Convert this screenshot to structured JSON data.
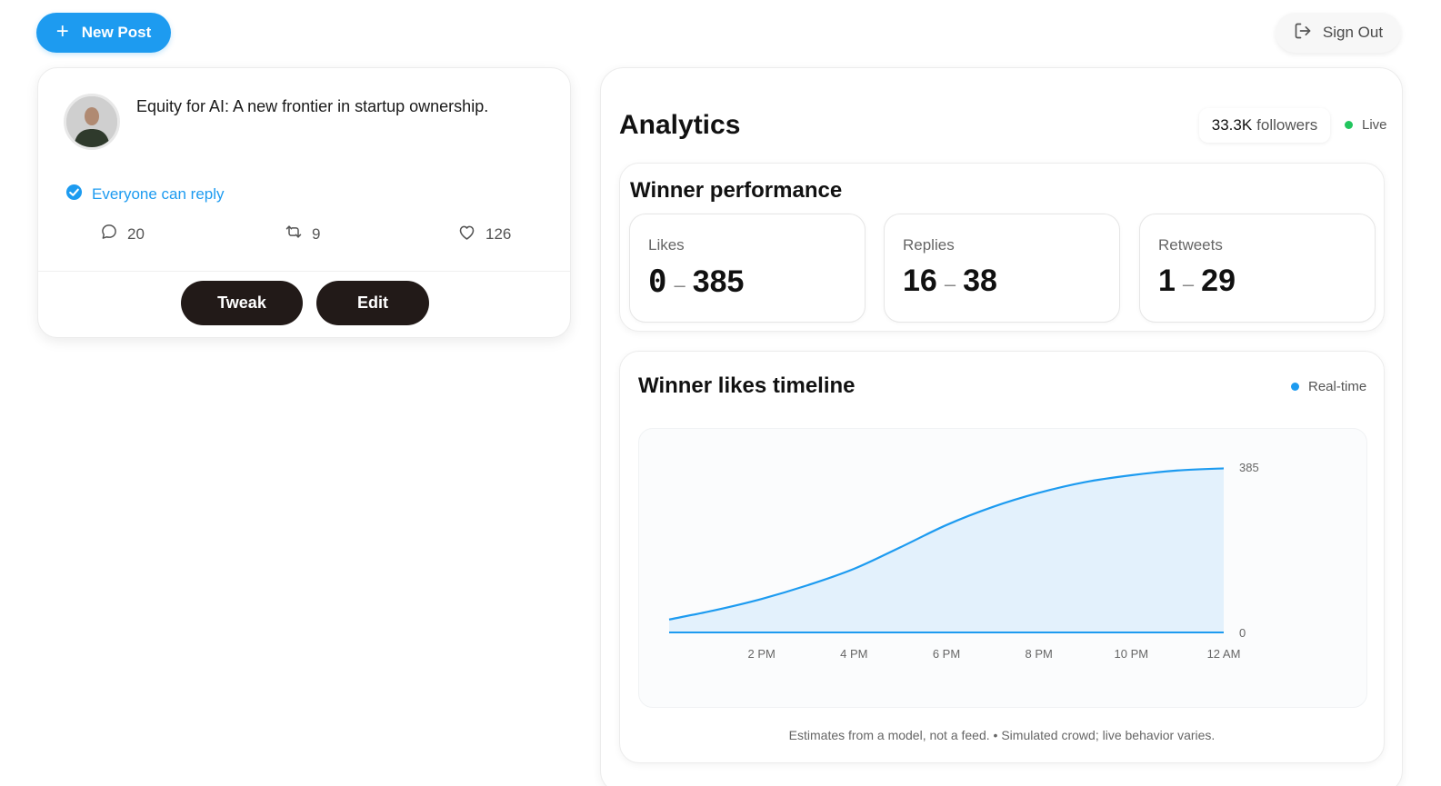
{
  "header": {
    "new_post_label": "New Post",
    "sign_out_label": "Sign Out"
  },
  "post": {
    "text": "Equity for AI: A new frontier in startup ownership.",
    "reply_setting": "Everyone can reply",
    "stats": {
      "replies": "20",
      "retweets": "9",
      "likes": "126"
    },
    "actions": {
      "tweak_label": "Tweak",
      "edit_label": "Edit"
    }
  },
  "analytics": {
    "title": "Analytics",
    "followers_count": "33.3K",
    "followers_label": "followers",
    "live_label": "Live",
    "live_color": "#22c55e",
    "performance": {
      "title": "Winner performance",
      "metrics": [
        {
          "label": "Likes",
          "low": "0",
          "high": "385"
        },
        {
          "label": "Replies",
          "low": "16",
          "high": "38"
        },
        {
          "label": "Retweets",
          "low": "1",
          "high": "29"
        }
      ]
    },
    "timeline": {
      "title": "Winner likes timeline",
      "realtime_label": "Real-time",
      "realtime_color": "#1d9bf0",
      "footnote": "Estimates from a model, not a feed. • Simulated crowd; live behavior varies."
    }
  },
  "chart_data": {
    "type": "area",
    "title": "Winner likes timeline",
    "x": [
      0,
      1,
      2,
      3,
      4,
      5,
      6,
      7,
      8,
      9,
      10,
      11,
      12
    ],
    "x_tick_positions": [
      2,
      4,
      6,
      8,
      10,
      12
    ],
    "x_tick_labels": [
      "2 PM",
      "4 PM",
      "6 PM",
      "8 PM",
      "10 PM",
      "12 AM"
    ],
    "y_tick_labels": [
      "385",
      "0"
    ],
    "series": [
      {
        "name": "Likes",
        "values": [
          30,
          52,
          78,
          110,
          148,
          198,
          250,
          292,
          325,
          350,
          366,
          377,
          382
        ],
        "color": "#1d9bf0"
      }
    ],
    "ylim": [
      0,
      385
    ],
    "xlim": [
      0,
      12
    ],
    "grid": false,
    "legend": "none"
  }
}
